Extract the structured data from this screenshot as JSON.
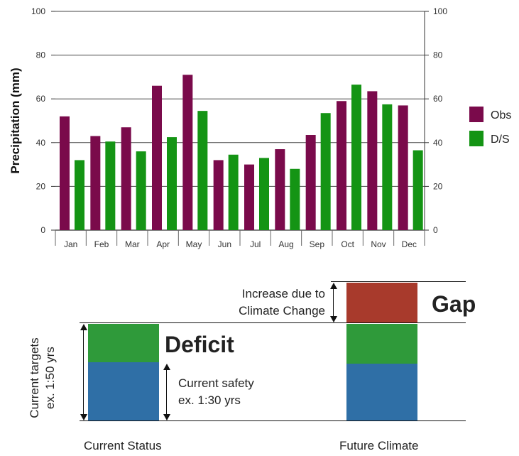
{
  "chart_data": {
    "type": "bar",
    "categories": [
      "Jan",
      "Feb",
      "Mar",
      "Apr",
      "May",
      "Jun",
      "Jul",
      "Aug",
      "Sep",
      "Oct",
      "Nov",
      "Dec"
    ],
    "series": [
      {
        "name": "Obs",
        "color": "#7a0a4b",
        "values": [
          52,
          43,
          47,
          66,
          71,
          32,
          30,
          37,
          43.5,
          59,
          63.5,
          57
        ]
      },
      {
        "name": "D/S",
        "color": "#149414",
        "values": [
          32,
          40.5,
          36,
          42.5,
          54.5,
          34.5,
          33,
          28,
          53.5,
          66.5,
          57.5,
          36.5
        ]
      }
    ],
    "ylabel": "Precipitation (mm)",
    "ylim": [
      0,
      100
    ],
    "yticks": [
      0,
      20,
      40,
      60,
      80,
      100
    ],
    "grid": true,
    "legend": "right"
  },
  "diagram": {
    "gap_label": "Gap",
    "deficit_label": "Deficit",
    "increase_label_line1": "Increase due to",
    "increase_label_line2": "Climate Change",
    "safety_label_line1": "Current safety",
    "safety_label_line2": "ex. 1:30 yrs",
    "targets_label_line1": "Current targets",
    "targets_label_line2": "ex. 1:50 yrs",
    "current_status_label": "Current Status",
    "future_climate_label": "Future Climate",
    "colors": {
      "red": "#a83a2c",
      "green": "#2f9a3a",
      "blue": "#2f6fa6"
    }
  }
}
